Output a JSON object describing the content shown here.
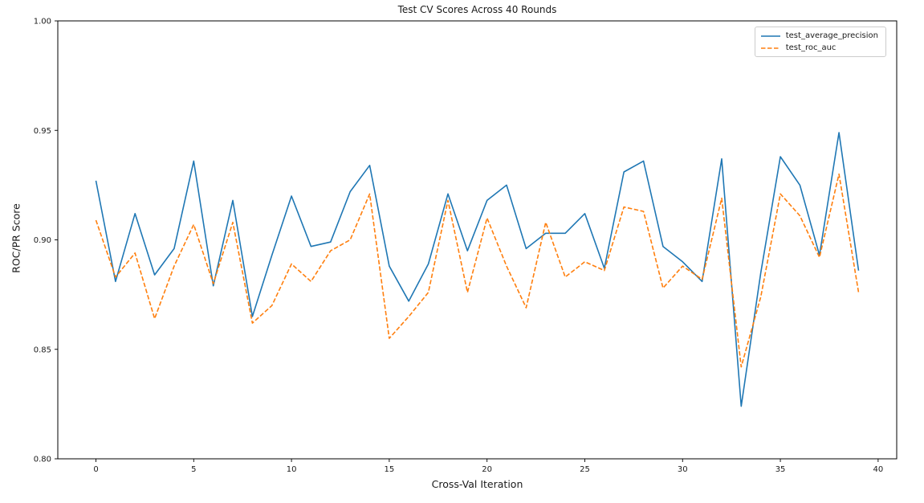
{
  "figure": {
    "background": "#ffffff"
  },
  "chart_data": {
    "type": "line",
    "title": "Test CV Scores Across 40 Rounds",
    "xlabel": "Cross-Val Iteration",
    "ylabel": "ROC/PR Score",
    "grid": false,
    "legend_position": "upper right",
    "xlim": [
      -1.95,
      40.95
    ],
    "ylim": [
      0.8,
      1.0
    ],
    "xticks": [
      0,
      5,
      10,
      15,
      20,
      25,
      30,
      35,
      40
    ],
    "yticks": [
      0.8,
      0.85,
      0.9,
      0.95,
      1.0
    ],
    "x": [
      0,
      1,
      2,
      3,
      4,
      5,
      6,
      7,
      8,
      9,
      10,
      11,
      12,
      13,
      14,
      15,
      16,
      17,
      18,
      19,
      20,
      21,
      22,
      23,
      24,
      25,
      26,
      27,
      28,
      29,
      30,
      31,
      32,
      33,
      34,
      35,
      36,
      37,
      38,
      39
    ],
    "series": [
      {
        "name": "test_average_precision",
        "color": "#1f77b4",
        "style": "solid",
        "values": [
          0.927,
          0.881,
          0.912,
          0.884,
          0.896,
          0.936,
          0.879,
          0.918,
          0.865,
          0.893,
          0.92,
          0.897,
          0.899,
          0.922,
          0.934,
          0.888,
          0.872,
          0.889,
          0.921,
          0.895,
          0.918,
          0.925,
          0.896,
          0.903,
          0.903,
          0.912,
          0.887,
          0.931,
          0.936,
          0.897,
          0.89,
          0.881,
          0.937,
          0.824,
          0.885,
          0.938,
          0.925,
          0.893,
          0.949,
          0.886
        ]
      },
      {
        "name": "test_roc_auc",
        "color": "#ff7f0e",
        "style": "dashed",
        "values": [
          0.909,
          0.883,
          0.894,
          0.864,
          0.888,
          0.907,
          0.88,
          0.908,
          0.862,
          0.87,
          0.889,
          0.881,
          0.895,
          0.9,
          0.921,
          0.855,
          0.865,
          0.876,
          0.918,
          0.876,
          0.91,
          0.888,
          0.869,
          0.908,
          0.883,
          0.89,
          0.886,
          0.915,
          0.913,
          0.878,
          0.888,
          0.882,
          0.919,
          0.842,
          0.874,
          0.921,
          0.911,
          0.892,
          0.93,
          0.876
        ]
      }
    ]
  }
}
